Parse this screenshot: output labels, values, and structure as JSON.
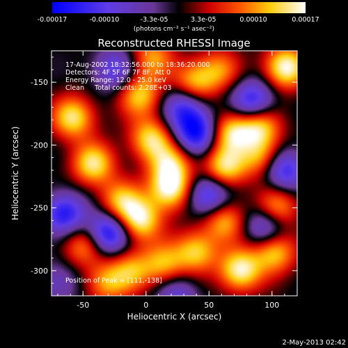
{
  "colorbar": {
    "ticks": [
      {
        "label": "-0.00017",
        "value": -0.00017
      },
      {
        "label": "-0.00010",
        "value": -0.0001
      },
      {
        "label": "-3.3e-05",
        "value": -3.3e-05
      },
      {
        "label": "3.3e-05",
        "value": 3.3e-05
      },
      {
        "label": "0.00010",
        "value": 0.0001
      },
      {
        "label": "0.00017",
        "value": 0.00017
      }
    ],
    "range": [
      -0.00017,
      0.00017
    ],
    "units": "(photons cm⁻² s⁻¹ asec⁻²)"
  },
  "chart_data": {
    "type": "heatmap",
    "title": "Reconstructed RHESSI Image",
    "xlabel": "Heliocentric X (arcsec)",
    "ylabel": "Heliocentric Y (arcsec)",
    "xlim": [
      -75,
      120
    ],
    "ylim": [
      -320,
      -125
    ],
    "x_ticks": [
      -50,
      0,
      50,
      100
    ],
    "y_ticks": [
      -150,
      -200,
      -250,
      -300
    ],
    "annotation_lines": [
      "17-Aug-2002 18:32:56.000 to 18:36:20.000",
      "Detectors: 4F 5F 6F 7F 8F, Att 0",
      "Energy Range: 12.0 - 25.0 keV",
      "Clean     Total counts: 2.28E+03"
    ],
    "peak_label": "Position of Peak = [111,-138]",
    "peak_position": [
      111,
      -138
    ],
    "blobs": [
      {
        "x": 111,
        "y": -138,
        "v": 1.0
      },
      {
        "x": 19,
        "y": -235,
        "v": 0.95
      },
      {
        "x": -58,
        "y": -178,
        "v": 0.85
      },
      {
        "x": -42,
        "y": -215,
        "v": 0.85
      },
      {
        "x": -5,
        "y": -260,
        "v": 0.9
      },
      {
        "x": -5,
        "y": -160,
        "v": 0.75
      },
      {
        "x": 4,
        "y": -195,
        "v": 0.8
      },
      {
        "x": -20,
        "y": -245,
        "v": 0.7
      },
      {
        "x": 20,
        "y": -215,
        "v": 0.7
      },
      {
        "x": 38,
        "y": -150,
        "v": 0.7
      },
      {
        "x": 58,
        "y": -140,
        "v": 0.55
      },
      {
        "x": 68,
        "y": -190,
        "v": 0.8
      },
      {
        "x": 90,
        "y": -185,
        "v": 0.8
      },
      {
        "x": 62,
        "y": -218,
        "v": 0.85
      },
      {
        "x": 92,
        "y": -210,
        "v": 0.65
      },
      {
        "x": 104,
        "y": -250,
        "v": 0.7
      },
      {
        "x": 102,
        "y": -285,
        "v": 0.8
      },
      {
        "x": 75,
        "y": -300,
        "v": 0.95
      },
      {
        "x": 62,
        "y": -260,
        "v": 0.7
      },
      {
        "x": 40,
        "y": -285,
        "v": 0.75
      },
      {
        "x": 14,
        "y": -295,
        "v": 0.65
      },
      {
        "x": -12,
        "y": -300,
        "v": 0.6
      },
      {
        "x": -32,
        "y": -310,
        "v": 0.6
      },
      {
        "x": -50,
        "y": -280,
        "v": 0.6
      },
      {
        "x": 5,
        "y": -130,
        "v": 0.6
      },
      {
        "x": 40,
        "y": -190,
        "v": -0.95
      },
      {
        "x": -30,
        "y": -270,
        "v": -1.0
      },
      {
        "x": -65,
        "y": -255,
        "v": -0.85
      },
      {
        "x": 50,
        "y": -240,
        "v": -0.85
      },
      {
        "x": 85,
        "y": -165,
        "v": -0.85
      },
      {
        "x": 110,
        "y": -220,
        "v": -0.8
      },
      {
        "x": 95,
        "y": -265,
        "v": -0.7
      },
      {
        "x": 30,
        "y": -170,
        "v": -0.7
      },
      {
        "x": -25,
        "y": -140,
        "v": -0.6
      },
      {
        "x": 25,
        "y": -320,
        "v": -0.5
      },
      {
        "x": -70,
        "y": -310,
        "v": -0.4
      }
    ]
  },
  "timestamp": "2-May-2013 02:42"
}
